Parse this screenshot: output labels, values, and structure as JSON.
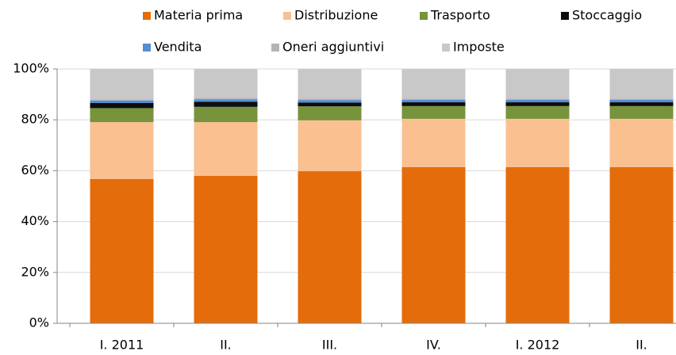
{
  "chart_data": {
    "type": "stacked_bar",
    "categories": [
      "I. 2011",
      "II.",
      "III.",
      "IV.",
      "I. 2012",
      "II."
    ],
    "series": [
      {
        "name": "Materia prima",
        "color": "#e46c0a",
        "values": [
          56.7,
          58,
          59.8,
          61.4,
          61.4,
          61.4
        ]
      },
      {
        "name": "Distribuzione",
        "color": "#fac090",
        "values": [
          22.4,
          21.1,
          20,
          19,
          19,
          19
        ]
      },
      {
        "name": "Trasporto",
        "color": "#77933c",
        "values": [
          5.5,
          6,
          5.5,
          5,
          5,
          5
        ]
      },
      {
        "name": "Stoccaggio",
        "color": "#0d0d0d",
        "values": [
          2,
          2,
          1.5,
          1.5,
          1.5,
          1.5
        ]
      },
      {
        "name": "Vendita",
        "color": "#558ed5",
        "values": [
          1,
          1,
          1,
          1,
          1,
          1
        ]
      },
      {
        "name": "Oneri aggiuntivi",
        "color": "#b4b4b4",
        "values": [
          0.5,
          0.5,
          0.5,
          0.5,
          0.5,
          0.5
        ]
      },
      {
        "name": "Imposte",
        "color": "#c8c8c8",
        "values": [
          11.9,
          11.4,
          11.7,
          11.6,
          11.6,
          11.6
        ]
      }
    ],
    "ylim": [
      0,
      100
    ],
    "yticks": [
      {
        "value": 0,
        "label": "0%"
      },
      {
        "value": 20,
        "label": "20%"
      },
      {
        "value": 40,
        "label": "40%"
      },
      {
        "value": 60,
        "label": "60%"
      },
      {
        "value": 80,
        "label": "80%"
      },
      {
        "value": 100,
        "label": "100%"
      }
    ],
    "grid": true,
    "legend": "top"
  }
}
